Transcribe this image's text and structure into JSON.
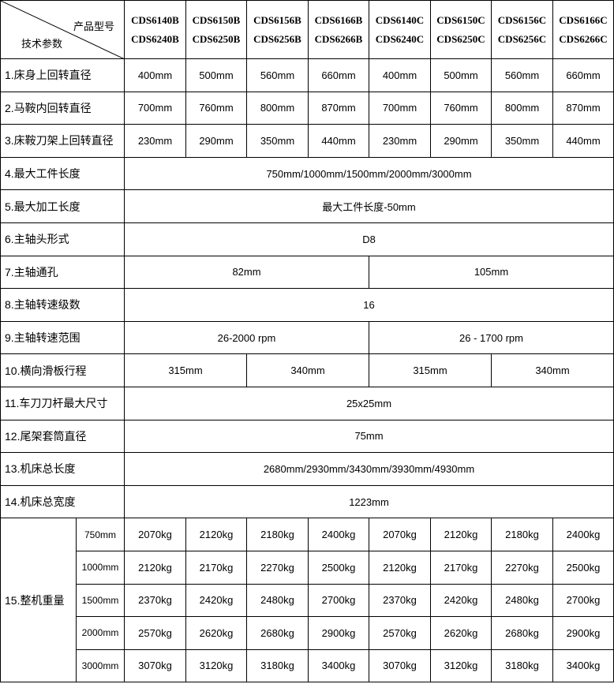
{
  "header": {
    "corner_top": "产品型号",
    "corner_bottom": "技术参数",
    "models": [
      [
        "CDS6140B",
        "CDS6240B"
      ],
      [
        "CDS6150B",
        "CDS6250B"
      ],
      [
        "CDS6156B",
        "CDS6256B"
      ],
      [
        "CDS6166B",
        "CDS6266B"
      ],
      [
        "CDS6140C",
        "CDS6240C"
      ],
      [
        "CDS6150C",
        "CDS6250C"
      ],
      [
        "CDS6156C",
        "CDS6256C"
      ],
      [
        "CDS6166C",
        "CDS6266C"
      ]
    ]
  },
  "rows": [
    {
      "label": "1.床身上回转直径",
      "cells": [
        [
          "400mm",
          1
        ],
        [
          "500mm",
          1
        ],
        [
          "560mm",
          1
        ],
        [
          "660mm",
          1
        ],
        [
          "400mm",
          1
        ],
        [
          "500mm",
          1
        ],
        [
          "560mm",
          1
        ],
        [
          "660mm",
          1
        ]
      ]
    },
    {
      "label": "2.马鞍内回转直径",
      "cells": [
        [
          "700mm",
          1
        ],
        [
          "760mm",
          1
        ],
        [
          "800mm",
          1
        ],
        [
          "870mm",
          1
        ],
        [
          "700mm",
          1
        ],
        [
          "760mm",
          1
        ],
        [
          "800mm",
          1
        ],
        [
          "870mm",
          1
        ]
      ]
    },
    {
      "label": "3.床鞍刀架上回转直径",
      "cells": [
        [
          "230mm",
          1
        ],
        [
          "290mm",
          1
        ],
        [
          "350mm",
          1
        ],
        [
          "440mm",
          1
        ],
        [
          "230mm",
          1
        ],
        [
          "290mm",
          1
        ],
        [
          "350mm",
          1
        ],
        [
          "440mm",
          1
        ]
      ]
    },
    {
      "label": "4.最大工件长度",
      "cells": [
        [
          "750mm/1000mm/1500mm/2000mm/3000mm",
          8
        ]
      ]
    },
    {
      "label": "5.最大加工长度",
      "cells": [
        [
          "最大工件长度-50mm",
          8
        ]
      ]
    },
    {
      "label": "6.主轴头形式",
      "cells": [
        [
          "D8",
          8
        ]
      ]
    },
    {
      "label": "7.主轴通孔",
      "cells": [
        [
          "82mm",
          4
        ],
        [
          "105mm",
          4
        ]
      ]
    },
    {
      "label": "8.主轴转速级数",
      "cells": [
        [
          "16",
          8
        ]
      ]
    },
    {
      "label": "9.主轴转速范围",
      "cells": [
        [
          "26-2000 rpm",
          4
        ],
        [
          "26 - 1700 rpm",
          4
        ]
      ]
    },
    {
      "label": "10.横向滑板行程",
      "cells": [
        [
          "315mm",
          2
        ],
        [
          "340mm",
          2
        ],
        [
          "315mm",
          2
        ],
        [
          "340mm",
          2
        ]
      ]
    },
    {
      "label": "11.车刀刀杆最大尺寸",
      "cells": [
        [
          "25x25mm",
          8
        ]
      ]
    },
    {
      "label": "12.尾架套筒直径",
      "cells": [
        [
          "75mm",
          8
        ]
      ]
    },
    {
      "label": "13.机床总长度",
      "cells": [
        [
          "2680mm/2930mm/3430mm/3930mm/4930mm",
          8
        ]
      ]
    },
    {
      "label": "14.机床总宽度",
      "cells": [
        [
          "1223mm",
          8
        ]
      ]
    }
  ],
  "weight": {
    "label": "15.整机重量",
    "rows": [
      {
        "length": "750mm",
        "values": [
          "2070kg",
          "2120kg",
          "2180kg",
          "2400kg",
          "2070kg",
          "2120kg",
          "2180kg",
          "2400kg"
        ]
      },
      {
        "length": "1000mm",
        "values": [
          "2120kg",
          "2170kg",
          "2270kg",
          "2500kg",
          "2120kg",
          "2170kg",
          "2270kg",
          "2500kg"
        ]
      },
      {
        "length": "1500mm",
        "values": [
          "2370kg",
          "2420kg",
          "2480kg",
          "2700kg",
          "2370kg",
          "2420kg",
          "2480kg",
          "2700kg"
        ]
      },
      {
        "length": "2000mm",
        "values": [
          "2570kg",
          "2620kg",
          "2680kg",
          "2900kg",
          "2570kg",
          "2620kg",
          "2680kg",
          "2900kg"
        ]
      },
      {
        "length": "3000mm",
        "values": [
          "3070kg",
          "3120kg",
          "3180kg",
          "3400kg",
          "3070kg",
          "3120kg",
          "3180kg",
          "3400kg"
        ]
      }
    ]
  }
}
